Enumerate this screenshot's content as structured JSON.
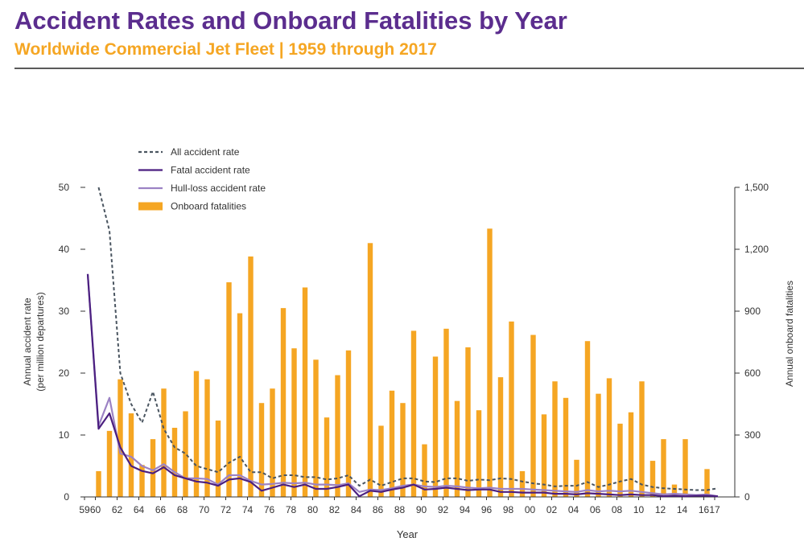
{
  "header": {
    "title": "Accident Rates and Onboard Fatalities by Year",
    "subtitle": "Worldwide Commercial Jet Fleet | 1959 through 2017"
  },
  "colors": {
    "all_rate": "#4a5560",
    "fatal_rate": "#4b1f80",
    "hull_loss_rate": "#9c82c4",
    "fatalities": "#f5a623",
    "title": "#5b2d8e",
    "subtitle": "#f5a623",
    "axis": "#333333"
  },
  "chart_data": {
    "type": "bar",
    "xlabel": "Year",
    "ylabel_left": [
      "Annual accident rate",
      "(per million departures)"
    ],
    "ylabel_right": "Annual onboard fatalities",
    "ylim_left": [
      0,
      50
    ],
    "ylim_right": [
      0,
      1500
    ],
    "left_ticks": [
      "0",
      "10",
      "20",
      "30",
      "40",
      "50"
    ],
    "right_ticks": [
      "0",
      "300",
      "600",
      "900",
      "1,200",
      "1,500"
    ],
    "x_tick_labels": [
      "59",
      "60",
      "62",
      "64",
      "66",
      "68",
      "70",
      "72",
      "74",
      "76",
      "78",
      "80",
      "82",
      "84",
      "86",
      "88",
      "90",
      "92",
      "94",
      "96",
      "98",
      "00",
      "02",
      "04",
      "06",
      "08",
      "10",
      "12",
      "14",
      "16",
      "17"
    ],
    "legend_position": "top-left",
    "categories": [
      "59",
      "60",
      "61",
      "62",
      "63",
      "64",
      "65",
      "66",
      "67",
      "68",
      "69",
      "70",
      "71",
      "72",
      "73",
      "74",
      "75",
      "76",
      "77",
      "78",
      "79",
      "80",
      "81",
      "82",
      "83",
      "84",
      "85",
      "86",
      "87",
      "88",
      "89",
      "90",
      "91",
      "92",
      "93",
      "94",
      "95",
      "96",
      "97",
      "98",
      "99",
      "00",
      "01",
      "02",
      "03",
      "04",
      "05",
      "06",
      "07",
      "08",
      "09",
      "10",
      "11",
      "12",
      "13",
      "14",
      "15",
      "16",
      "17"
    ],
    "series": [
      {
        "name": "All accident rate",
        "style": "dotted-line",
        "axis": "left",
        "values": [
          null,
          50,
          43,
          20,
          15,
          12,
          17,
          11,
          8,
          7,
          5,
          4.5,
          4,
          5.5,
          6.5,
          4,
          4,
          3,
          3.5,
          3.5,
          3.2,
          3.2,
          2.8,
          3,
          3.5,
          1.8,
          2.8,
          1.8,
          2.4,
          3,
          3,
          2.5,
          2.4,
          3,
          3,
          2.6,
          2.8,
          2.7,
          3,
          2.9,
          2.5,
          2.2,
          2,
          1.7,
          1.8,
          1.8,
          2.4,
          1.6,
          2,
          2.5,
          2.9,
          2,
          1.6,
          1.4,
          1.3,
          1.2,
          1.1,
          1.1,
          1.4
        ]
      },
      {
        "name": "Fatal accident rate",
        "style": "solid-line",
        "axis": "left",
        "values": [
          36,
          11,
          13.5,
          8,
          5,
          4.2,
          3.8,
          4.8,
          3.5,
          3,
          2.5,
          2.3,
          1.8,
          2.8,
          3,
          2.4,
          1,
          1.5,
          2,
          1.6,
          2,
          1.3,
          1.3,
          1.6,
          2,
          0.1,
          1,
          0.8,
          1.2,
          1.5,
          2,
          1.2,
          1.3,
          1.5,
          1.3,
          1.1,
          1.2,
          1.2,
          0.8,
          0.8,
          0.7,
          0.7,
          0.7,
          0.5,
          0.5,
          0.4,
          0.6,
          0.5,
          0.4,
          0.3,
          0.4,
          0.3,
          0.3,
          0.1,
          0.2,
          0.1,
          0.2,
          0.2,
          0.1
        ]
      },
      {
        "name": "Hull-loss accident rate",
        "style": "solid-line",
        "axis": "left",
        "values": [
          36,
          11.5,
          16,
          7,
          6.5,
          5,
          4.3,
          5.3,
          4,
          3,
          3,
          2.9,
          2,
          3.5,
          3.5,
          2.6,
          2,
          2.1,
          2.3,
          2.2,
          2.3,
          2,
          2,
          1.9,
          2.2,
          0.8,
          1.2,
          1.1,
          1.4,
          1.8,
          2,
          1.7,
          1.6,
          1.8,
          1.7,
          1.5,
          1.4,
          1.5,
          1.3,
          1.3,
          1.3,
          1.2,
          1.1,
          1,
          0.9,
          0.8,
          1.1,
          0.9,
          1,
          0.9,
          1,
          0.8,
          0.6,
          0.4,
          0.5,
          0.4,
          0.3,
          0.4,
          0.1
        ]
      },
      {
        "name": "Onboard fatalities",
        "style": "bar",
        "axis": "right",
        "values": [
          0,
          125,
          320,
          570,
          405,
          155,
          280,
          525,
          335,
          415,
          610,
          570,
          370,
          1040,
          890,
          1165,
          455,
          525,
          915,
          720,
          1015,
          665,
          385,
          590,
          710,
          0,
          1230,
          345,
          515,
          455,
          805,
          255,
          680,
          815,
          465,
          725,
          420,
          1300,
          580,
          850,
          125,
          785,
          400,
          560,
          480,
          180,
          755,
          500,
          575,
          355,
          410,
          560,
          175,
          280,
          60,
          280,
          0,
          135,
          0
        ]
      }
    ]
  }
}
